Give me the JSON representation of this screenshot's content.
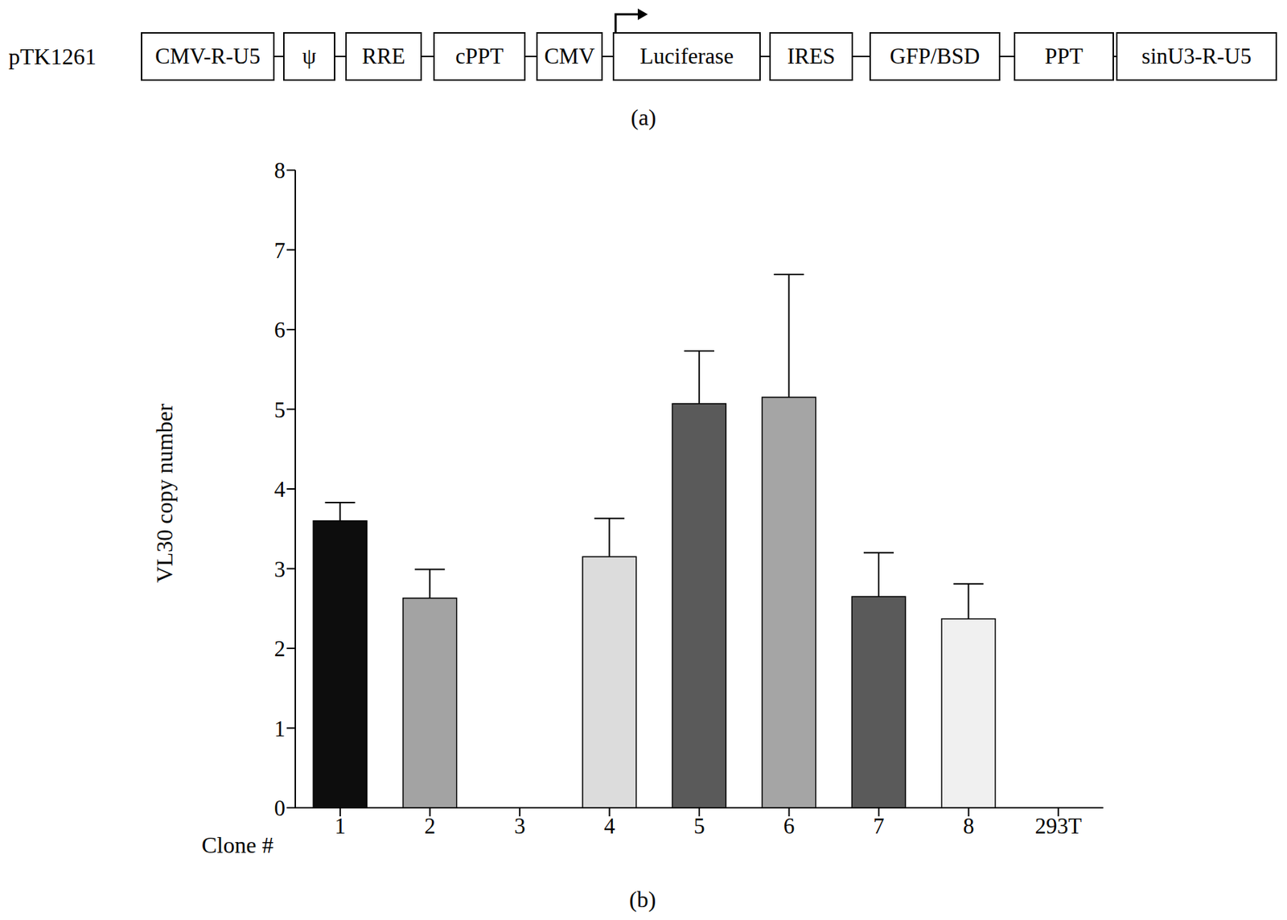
{
  "diagram": {
    "panel": "(a)",
    "name": "pTK1261",
    "elements": [
      "CMV-R-U5",
      "ψ",
      "RRE",
      "cPPT",
      "CMV",
      "Luciferase",
      "IRES",
      "GFP/BSD",
      "PPT",
      "sinU3-R-U5"
    ]
  },
  "chart_data": {
    "type": "bar",
    "panel": "(b)",
    "x_label": "Clone #",
    "y_label": "VL30 copy number",
    "categories": [
      "1",
      "2",
      "3",
      "4",
      "5",
      "6",
      "7",
      "8",
      "293T"
    ],
    "values": [
      3.6,
      2.63,
      0,
      3.15,
      5.07,
      5.15,
      2.65,
      2.37,
      0
    ],
    "errors": [
      0.23,
      0.36,
      0,
      0.48,
      0.66,
      1.54,
      0.55,
      0.44,
      0
    ],
    "colors": [
      "#0d0d0d",
      "#a3a3a3",
      "#c0c0c0",
      "#dcdcdc",
      "#5a5a5a",
      "#a5a5a5",
      "#5a5a5a",
      "#f0f0f0",
      "#000000"
    ],
    "ylim": [
      0,
      8
    ],
    "yticks": [
      0,
      1,
      2,
      3,
      4,
      5,
      6,
      7,
      8
    ]
  }
}
